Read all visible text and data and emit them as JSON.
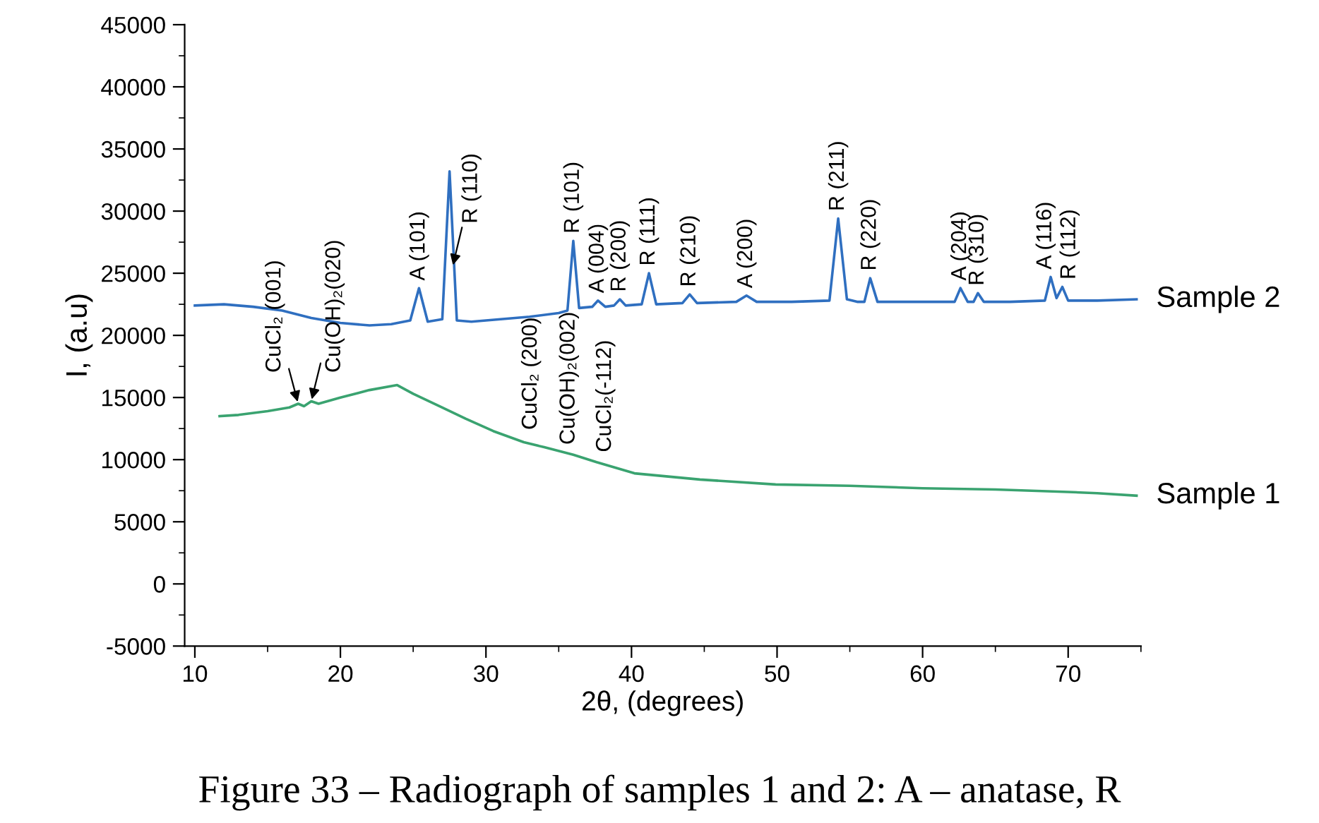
{
  "chart_data": {
    "type": "line",
    "xlabel": "2θ, (degrees)",
    "ylabel": "I, (a.u)",
    "xlim": [
      9.3,
      75
    ],
    "xticks": [
      10,
      20,
      30,
      40,
      50,
      60,
      70
    ],
    "ylim": [
      -5000,
      45000
    ],
    "yticks": [
      -5000,
      0,
      5000,
      10000,
      15000,
      20000,
      25000,
      30000,
      35000,
      40000,
      45000
    ],
    "grid": false,
    "legend": false,
    "marker": "none",
    "line_style": "solid",
    "series": [
      {
        "name": "Sample 2",
        "color": "#2f6fc0",
        "x": [
          10,
          12,
          14,
          16,
          18,
          20,
          22,
          23.5,
          24.8,
          25.4,
          26.0,
          27.0,
          27.5,
          28.0,
          29,
          31,
          33,
          35,
          35.6,
          36.0,
          36.4,
          37.3,
          37.7,
          38.2,
          38.8,
          39.2,
          39.6,
          40.7,
          41.2,
          41.7,
          43.5,
          44.0,
          44.5,
          47.2,
          47.9,
          48.6,
          51,
          53.6,
          54.2,
          54.8,
          55.5,
          56.0,
          56.4,
          56.9,
          60,
          62.2,
          62.6,
          63.1,
          63.5,
          63.8,
          64.2,
          66,
          68.4,
          68.8,
          69.2,
          69.6,
          70.0,
          72,
          74.7
        ],
        "values": [
          22400,
          22500,
          22300,
          22000,
          21400,
          21000,
          20800,
          20900,
          21200,
          23800,
          21100,
          21300,
          33200,
          21200,
          21100,
          21300,
          21500,
          21800,
          22000,
          27600,
          22200,
          22300,
          22800,
          22300,
          22400,
          22900,
          22400,
          22500,
          25000,
          22500,
          22600,
          23300,
          22600,
          22700,
          23200,
          22700,
          22700,
          22800,
          29400,
          22900,
          22700,
          22700,
          24600,
          22700,
          22700,
          22700,
          23800,
          22700,
          22700,
          23400,
          22700,
          22700,
          22800,
          24700,
          23000,
          23900,
          22800,
          22800,
          22900
        ]
      },
      {
        "name": "Sample 1",
        "color": "#3aa370",
        "x": [
          11.7,
          13,
          15,
          16.5,
          17.1,
          17.5,
          18.0,
          18.5,
          20,
          22,
          23.9,
          25,
          27,
          28.6,
          30.5,
          32.6,
          34,
          36.0,
          37.6,
          40.2,
          44.7,
          49.9,
          55,
          60,
          65,
          70,
          72,
          74.7
        ],
        "values": [
          13500,
          13600,
          13900,
          14200,
          14500,
          14300,
          14700,
          14500,
          15000,
          15600,
          16000,
          15300,
          14200,
          13300,
          12300,
          11400,
          11000,
          10400,
          9800,
          8900,
          8400,
          8000,
          7900,
          7700,
          7600,
          7400,
          7300,
          7100
        ]
      }
    ],
    "annotations": [
      {
        "text": "A (101)",
        "x": 25.4,
        "y": 23800
      },
      {
        "text": "R (110)",
        "x": 27.7,
        "y": 25500
      },
      {
        "text": "R (101)",
        "x": 36.0,
        "y": 27600
      },
      {
        "text": "A (004)",
        "x": 37.7,
        "y": 22800
      },
      {
        "text": "R (200)",
        "x": 39.2,
        "y": 22900
      },
      {
        "text": "R (111)",
        "x": 41.2,
        "y": 25000
      },
      {
        "text": "R (210)",
        "x": 44.0,
        "y": 23300
      },
      {
        "text": "A (200)",
        "x": 47.9,
        "y": 23200
      },
      {
        "text": "R (211)",
        "x": 54.2,
        "y": 29400
      },
      {
        "text": "R (220)",
        "x": 56.4,
        "y": 24600
      },
      {
        "text": "A (204)",
        "x": 62.6,
        "y": 23800
      },
      {
        "text": "R (310)",
        "x": 63.8,
        "y": 23400
      },
      {
        "text": "A (116)",
        "x": 68.8,
        "y": 24700
      },
      {
        "text": "R (112)",
        "x": 69.6,
        "y": 23900
      },
      {
        "text": "CuCl₂ (001)",
        "x": 17.1,
        "y": 14500
      },
      {
        "text": "Cu(OH)₂(020)",
        "x": 18.0,
        "y": 14700
      },
      {
        "text": "CuCl₂ (200)",
        "x": 32.6,
        "y": 11400
      },
      {
        "text": "Cu(OH)₂(002)",
        "x": 36.0,
        "y": 10400
      },
      {
        "text": "CuCl₂(-112)",
        "x": 37.6,
        "y": 9800
      },
      "Figure 33 – Radiograph of samples 1 and 2: A – anatase, R"
    ]
  }
}
